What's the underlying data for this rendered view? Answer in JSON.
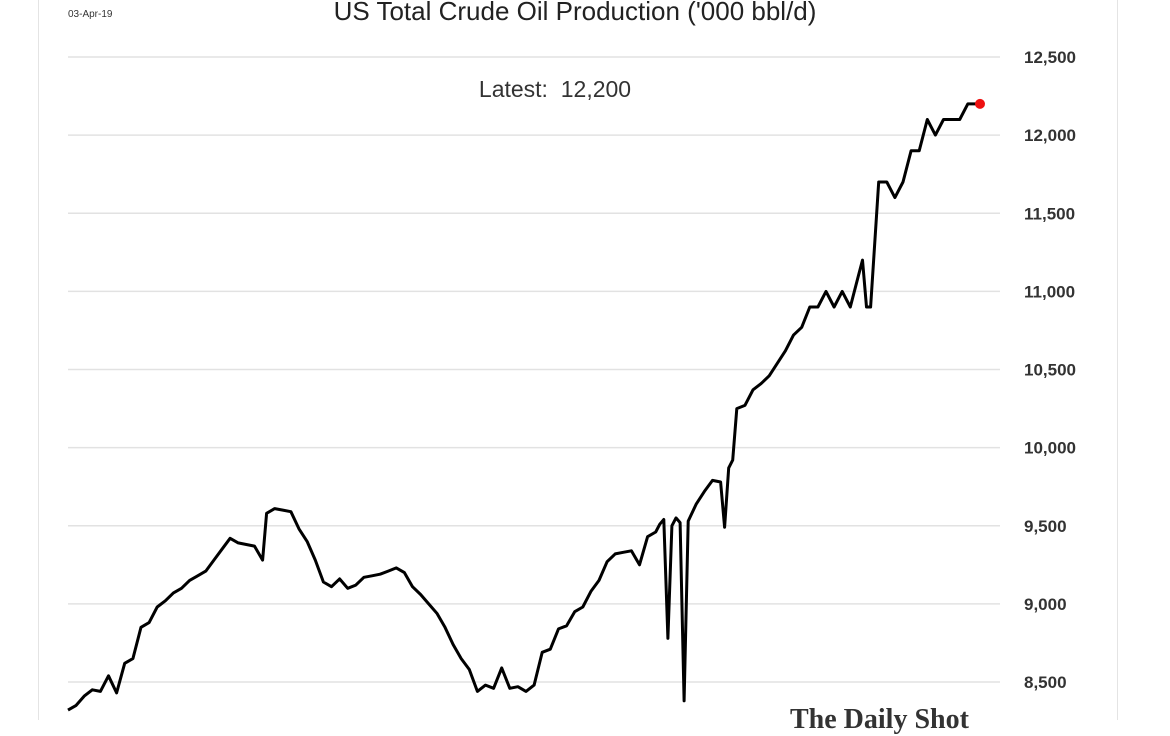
{
  "header": {
    "date": "03-Apr-19"
  },
  "annotation": {
    "label": "Latest:",
    "value": "12,200"
  },
  "source": "The Daily Shot",
  "colors": {
    "line": "#000000",
    "latest_marker": "#ee1111",
    "grid": "#e2e2e2"
  },
  "chart_data": {
    "type": "line",
    "title": "US Total Crude Oil Production ('000 bbl/d)",
    "xlabel": "",
    "ylabel": "",
    "x_range": [
      "2014-12",
      "2019-03"
    ],
    "ylim": [
      8300,
      12500
    ],
    "y_ticks": [
      8500,
      9000,
      9500,
      10000,
      10500,
      11000,
      11500,
      12000,
      12500
    ],
    "y_tick_labels": [
      "8,500",
      "9,000",
      "9,500",
      "10,000",
      "10,500",
      "11,000",
      "11,500",
      "12,000",
      "12,500"
    ],
    "y_axis_position": "right",
    "grid": true,
    "latest": {
      "x": "2019-03-29",
      "y": 12200
    },
    "series": [
      {
        "points": [
          [
            "2014-12-05",
            8320
          ],
          [
            "2014-12-19",
            8350
          ],
          [
            "2015-01-02",
            8410
          ],
          [
            "2015-01-16",
            8450
          ],
          [
            "2015-01-30",
            8440
          ],
          [
            "2015-02-13",
            8540
          ],
          [
            "2015-02-27",
            8430
          ],
          [
            "2015-03-13",
            8620
          ],
          [
            "2015-03-27",
            8650
          ],
          [
            "2015-04-10",
            8850
          ],
          [
            "2015-04-24",
            8880
          ],
          [
            "2015-05-08",
            8980
          ],
          [
            "2015-05-22",
            9020
          ],
          [
            "2015-06-05",
            9070
          ],
          [
            "2015-06-19",
            9100
          ],
          [
            "2015-07-03",
            9150
          ],
          [
            "2015-07-17",
            9180
          ],
          [
            "2015-07-31",
            9210
          ],
          [
            "2015-08-14",
            9280
          ],
          [
            "2015-08-28",
            9350
          ],
          [
            "2015-09-11",
            9420
          ],
          [
            "2015-09-25",
            9390
          ],
          [
            "2015-10-09",
            9380
          ],
          [
            "2015-10-23",
            9370
          ],
          [
            "2015-11-06",
            9280
          ],
          [
            "2015-11-13",
            9580
          ],
          [
            "2015-11-27",
            9610
          ],
          [
            "2015-12-11",
            9600
          ],
          [
            "2015-12-25",
            9590
          ],
          [
            "2016-01-08",
            9480
          ],
          [
            "2016-01-22",
            9400
          ],
          [
            "2016-02-05",
            9280
          ],
          [
            "2016-02-19",
            9140
          ],
          [
            "2016-03-04",
            9110
          ],
          [
            "2016-03-18",
            9160
          ],
          [
            "2016-04-01",
            9100
          ],
          [
            "2016-04-15",
            9120
          ],
          [
            "2016-04-29",
            9170
          ],
          [
            "2016-05-13",
            9180
          ],
          [
            "2016-05-27",
            9190
          ],
          [
            "2016-06-10",
            9210
          ],
          [
            "2016-06-24",
            9230
          ],
          [
            "2016-07-08",
            9200
          ],
          [
            "2016-07-22",
            9110
          ],
          [
            "2016-08-05",
            9060
          ],
          [
            "2016-08-19",
            9000
          ],
          [
            "2016-09-02",
            8940
          ],
          [
            "2016-09-16",
            8850
          ],
          [
            "2016-09-30",
            8740
          ],
          [
            "2016-10-14",
            8650
          ],
          [
            "2016-10-28",
            8580
          ],
          [
            "2016-11-11",
            8440
          ],
          [
            "2016-11-25",
            8480
          ],
          [
            "2016-12-09",
            8460
          ],
          [
            "2016-12-23",
            8590
          ],
          [
            "2017-01-06",
            8460
          ],
          [
            "2017-01-20",
            8470
          ],
          [
            "2017-02-03",
            8440
          ],
          [
            "2017-02-17",
            8480
          ],
          [
            "2017-03-03",
            8690
          ],
          [
            "2017-03-17",
            8710
          ],
          [
            "2017-03-31",
            8840
          ],
          [
            "2017-04-14",
            8860
          ],
          [
            "2017-04-28",
            8950
          ],
          [
            "2017-05-12",
            8980
          ],
          [
            "2017-05-26",
            9080
          ],
          [
            "2017-06-09",
            9150
          ],
          [
            "2017-06-23",
            9270
          ],
          [
            "2017-07-07",
            9320
          ],
          [
            "2017-07-21",
            9330
          ],
          [
            "2017-08-04",
            9340
          ],
          [
            "2017-08-18",
            9250
          ],
          [
            "2017-09-01",
            9430
          ],
          [
            "2017-09-15",
            9460
          ],
          [
            "2017-09-22",
            9510
          ],
          [
            "2017-09-29",
            9540
          ],
          [
            "2017-10-06",
            8780
          ],
          [
            "2017-10-13",
            9500
          ],
          [
            "2017-10-20",
            9550
          ],
          [
            "2017-10-27",
            9520
          ],
          [
            "2017-11-03",
            8380
          ],
          [
            "2017-11-10",
            9530
          ],
          [
            "2017-11-24",
            9640
          ],
          [
            "2017-12-08",
            9720
          ],
          [
            "2017-12-22",
            9790
          ],
          [
            "2018-01-05",
            9780
          ],
          [
            "2018-01-12",
            9490
          ],
          [
            "2018-01-19",
            9870
          ],
          [
            "2018-01-26",
            9920
          ],
          [
            "2018-02-02",
            10250
          ],
          [
            "2018-02-16",
            10270
          ],
          [
            "2018-03-02",
            10370
          ],
          [
            "2018-03-16",
            10410
          ],
          [
            "2018-03-30",
            10460
          ],
          [
            "2018-04-13",
            10540
          ],
          [
            "2018-04-27",
            10620
          ],
          [
            "2018-05-11",
            10720
          ],
          [
            "2018-05-25",
            10770
          ],
          [
            "2018-06-08",
            10900
          ],
          [
            "2018-06-22",
            10900
          ],
          [
            "2018-07-06",
            11000
          ],
          [
            "2018-07-20",
            10900
          ],
          [
            "2018-08-03",
            11000
          ],
          [
            "2018-08-17",
            10900
          ],
          [
            "2018-08-31",
            11100
          ],
          [
            "2018-09-07",
            11200
          ],
          [
            "2018-09-14",
            10900
          ],
          [
            "2018-09-21",
            10900
          ],
          [
            "2018-10-05",
            11700
          ],
          [
            "2018-10-19",
            11700
          ],
          [
            "2018-11-02",
            11600
          ],
          [
            "2018-11-16",
            11700
          ],
          [
            "2018-11-30",
            11900
          ],
          [
            "2018-12-14",
            11900
          ],
          [
            "2018-12-28",
            12100
          ],
          [
            "2019-01-11",
            12000
          ],
          [
            "2019-01-25",
            12100
          ],
          [
            "2019-02-08",
            12100
          ],
          [
            "2019-02-22",
            12100
          ],
          [
            "2019-03-08",
            12200
          ],
          [
            "2019-03-29",
            12200
          ]
        ]
      }
    ]
  }
}
